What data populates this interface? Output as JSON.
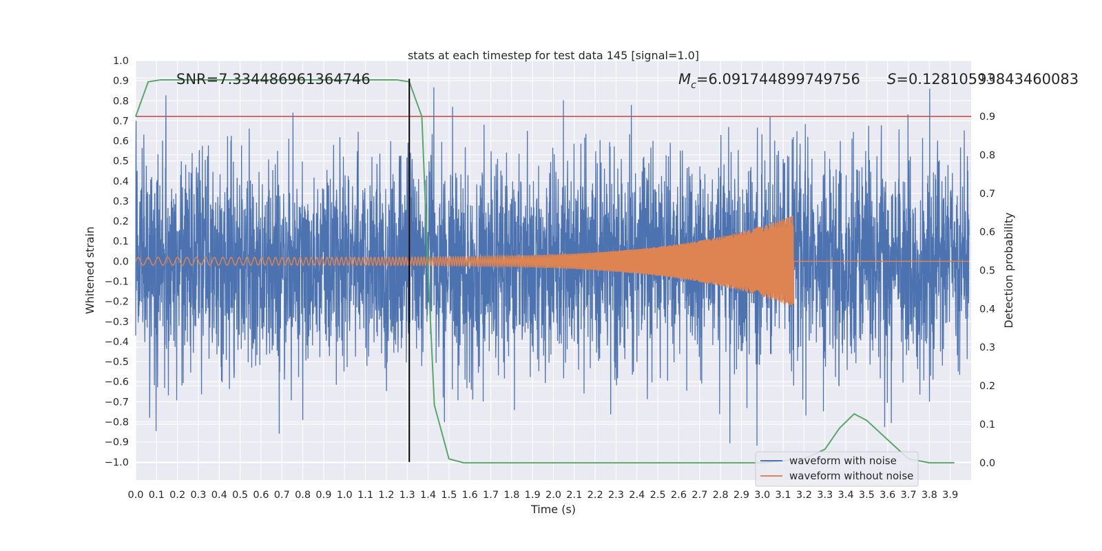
{
  "chart_data": {
    "type": "line",
    "title": "stats at each timestep for test data 145 [signal=1.0]",
    "xlabel": "Time (s)",
    "ylabel": "Whitened strain",
    "y2label": "Detection probability",
    "xlim": [
      0.0,
      4.0
    ],
    "ylim": [
      -1.09,
      1.0
    ],
    "y2lim": [
      -0.045,
      1.045
    ],
    "xticks": [
      "0.0",
      "0.1",
      "0.2",
      "0.3",
      "0.4",
      "0.5",
      "0.6",
      "0.7",
      "0.8",
      "0.9",
      "1.0",
      "1.1",
      "1.2",
      "1.3",
      "1.4",
      "1.5",
      "1.6",
      "1.7",
      "1.8",
      "1.9",
      "2.0",
      "2.1",
      "2.2",
      "2.3",
      "2.4",
      "2.5",
      "2.6",
      "2.7",
      "2.8",
      "2.9",
      "3.0",
      "3.1",
      "3.2",
      "3.3",
      "3.4",
      "3.5",
      "3.6",
      "3.7",
      "3.8",
      "3.9"
    ],
    "yticks": [
      "1.0",
      "0.9",
      "0.8",
      "0.7",
      "0.6",
      "0.5",
      "0.4",
      "0.3",
      "0.2",
      "0.1",
      "0.0",
      "−0.1",
      "−0.2",
      "−0.3",
      "−0.4",
      "−0.5",
      "−0.6",
      "−0.7",
      "−0.8",
      "−0.9",
      "−1.0"
    ],
    "y2ticks": [
      "1.0",
      "0.9",
      "0.8",
      "0.7",
      "0.6",
      "0.5",
      "0.4",
      "0.3",
      "0.2",
      "0.1",
      "0.0"
    ],
    "grid": true,
    "legend_placement": "lower-right",
    "annotations": {
      "snr": "SNR=7.334486961364746",
      "mc_symbol": "M",
      "mc_sub": "c",
      "mc_value": "=6.091744899749756",
      "s_symbol": "S",
      "s_value": "=0.12810593843460083"
    },
    "threshold": {
      "axis": "y2",
      "value": 0.9,
      "color": "#c44e52"
    },
    "marker_line": {
      "x": 1.31,
      "y_from": -1.0,
      "y_to": 0.91,
      "color": "#000000"
    },
    "series": [
      {
        "name": "waveform with noise",
        "color": "#4c72b0",
        "axis": "y1",
        "description_values": {
          "x_start": 0.0,
          "x_end": 3.99,
          "envelope_pos": [
            0.9,
            0.92
          ],
          "envelope_neg": [
            -0.88,
            -1.0
          ]
        }
      },
      {
        "name": "waveform without noise",
        "color": "#dd8452",
        "axis": "y1",
        "chirp": {
          "t_start": 0.0,
          "t_merge": 3.15,
          "amp_start": 0.02,
          "amp_peak": 0.23,
          "f_start": 21,
          "f_end": 120
        }
      },
      {
        "name": "",
        "color": "#55a868",
        "axis": "y2",
        "x": [
          0.0,
          0.06,
          0.12,
          0.2,
          0.4,
          0.6,
          0.8,
          1.0,
          1.2,
          1.25,
          1.31,
          1.37,
          1.4,
          1.43,
          1.5,
          1.57,
          2.0,
          2.5,
          3.0,
          3.2,
          3.3,
          3.37,
          3.44,
          3.5,
          3.6,
          3.7,
          3.8,
          3.92
        ],
        "y": [
          0.9,
          0.99,
          0.995,
          0.995,
          0.995,
          0.995,
          0.995,
          0.995,
          0.995,
          0.995,
          0.99,
          0.9,
          0.5,
          0.15,
          0.01,
          0.0,
          0.0,
          0.0,
          0.0,
          0.01,
          0.035,
          0.09,
          0.127,
          0.11,
          0.06,
          0.01,
          0.0,
          0.0
        ]
      }
    ]
  },
  "legend": {
    "items": [
      {
        "label": "waveform with noise",
        "color": "#4c72b0"
      },
      {
        "label": "waveform without noise",
        "color": "#dd8452"
      }
    ]
  }
}
